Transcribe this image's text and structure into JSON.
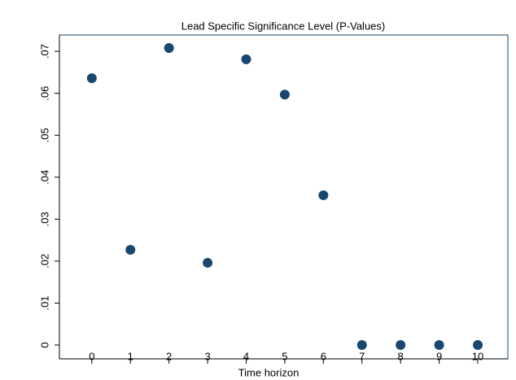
{
  "chart_data": {
    "type": "scatter",
    "title": "Lead Specific Significance Level (P-Values)",
    "x_label": "Time horizon",
    "color": "#1a476f",
    "x": [
      0,
      1,
      2,
      3,
      4,
      5,
      6,
      7,
      8,
      9,
      10
    ],
    "values": [
      0.0636,
      0.0227,
      0.0708,
      0.0196,
      0.0681,
      0.0597,
      0.0357,
      0,
      0,
      0,
      0
    ],
    "xlim": [
      -0.84,
      10.78
    ],
    "ylim": [
      -0.0033,
      0.0739
    ],
    "xticks": [
      0,
      1,
      2,
      3,
      4,
      5,
      6,
      7,
      8,
      9,
      10
    ],
    "yticks": [
      0,
      {
        "value": 0.01,
        "label": ".01"
      },
      {
        "value": 0.02,
        "label": ".02"
      },
      {
        "value": 0.03,
        "label": ".03"
      },
      {
        "value": 0.04,
        "label": ".04"
      },
      {
        "value": 0.05,
        "label": ".05"
      },
      {
        "value": 0.06,
        "label": ".06"
      },
      {
        "value": 0.07,
        "label": ".07"
      }
    ]
  }
}
